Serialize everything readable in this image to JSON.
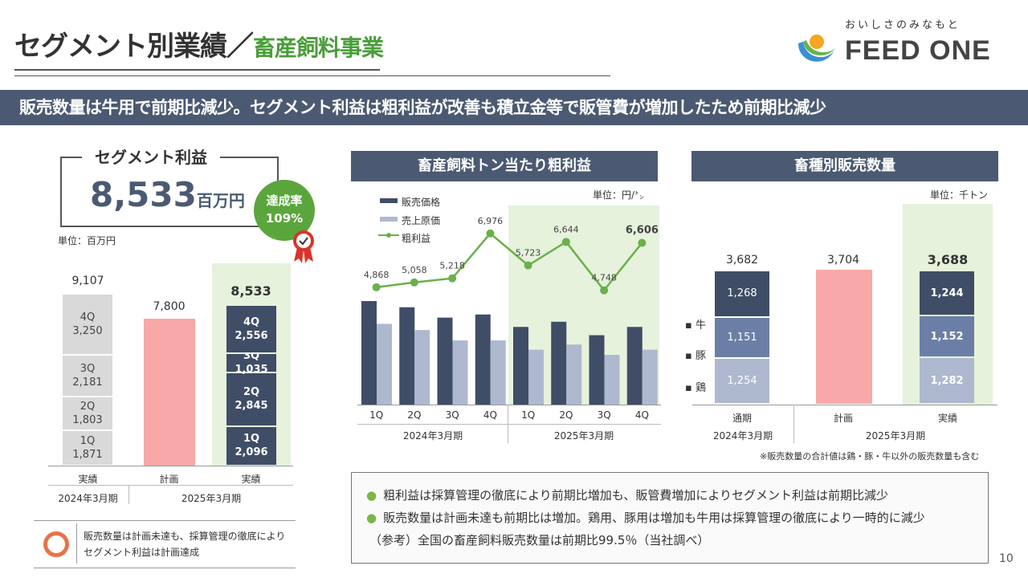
{
  "header": {
    "title": "セグメント別業績／",
    "subtitle": "畜産飼料事業",
    "logo_tagline": "おいしさのみなもと",
    "logo_name": "FEED ONE"
  },
  "banner": "販売数量は牛用で前期比減少。セグメント利益は粗利益が改善も積立金等で販管費が増加したため前期比減少",
  "profit": {
    "title": "セグメント利益",
    "value": "8,533",
    "unit": "百万円",
    "achv_label": "達成率",
    "achv_value": "109%",
    "unit_note": "単位：百万円"
  },
  "colors": {
    "navy": "#3f4d66",
    "gray": "#d9d9d9",
    "pink": "#f8a8a8",
    "green_bg": "#e6f2dc",
    "green": "#6ab04c",
    "lightblue": "#aeb9cf",
    "midblue": "#6b7fa6"
  },
  "chart_data": [
    {
      "type": "bar",
      "title": "セグメント利益",
      "categories": [
        "実績",
        "計画",
        "実績"
      ],
      "groups": [
        "2024年3月期",
        "2025年3月期"
      ],
      "totals": [
        "9,107",
        "7,800",
        "8,533"
      ],
      "stacks_2024": [
        {
          "q": "1Q",
          "v": "1,871",
          "n": 1871
        },
        {
          "q": "2Q",
          "v": "1,803",
          "n": 1803
        },
        {
          "q": "3Q",
          "v": "2,181",
          "n": 2181
        },
        {
          "q": "4Q",
          "v": "3,250",
          "n": 3250
        }
      ],
      "plan_2025": 7800,
      "stacks_2025": [
        {
          "q": "1Q",
          "v": "2,096",
          "n": 2096
        },
        {
          "q": "2Q",
          "v": "2,845",
          "n": 2845
        },
        {
          "q": "3Q",
          "v": "1,035",
          "n": 1035
        },
        {
          "q": "4Q",
          "v": "2,556",
          "n": 2556
        }
      ],
      "total_2024": 9107,
      "total_2025": 8533
    },
    {
      "type": "bar",
      "title": "畜産飼料トン当たり粗利益",
      "unit": "単位：円/㌧",
      "legend": [
        "販売価格",
        "売上原価",
        "粗利益"
      ],
      "categories": [
        "1Q",
        "2Q",
        "3Q",
        "4Q",
        "1Q",
        "2Q",
        "3Q",
        "4Q"
      ],
      "groups": [
        "2024年3月期",
        "2025年3月期"
      ],
      "price_rel": [
        100,
        94,
        84,
        87,
        75,
        80,
        67,
        75
      ],
      "cost_rel": [
        78,
        72,
        62,
        62,
        53,
        58,
        48,
        53
      ],
      "gross_profit": [
        4868,
        5058,
        5218,
        6976,
        5723,
        6644,
        4748,
        6606
      ],
      "gross_profit_labels": [
        "4,868",
        "5,058",
        "5,218",
        "6,976",
        "5,723",
        "6,644",
        "4,748",
        "6,606"
      ]
    },
    {
      "type": "bar",
      "title": "畜種別販売数量",
      "unit": "単位：千トン",
      "legend": [
        "牛",
        "豚",
        "鶏"
      ],
      "categories": [
        "通期",
        "計画",
        "実績"
      ],
      "groups": [
        "2024年3月期",
        "2025年3月期"
      ],
      "totals": [
        "3,682",
        "3,704",
        "3,688"
      ],
      "actual_2024": [
        {
          "k": "鶏",
          "v": "1,254",
          "n": 1254
        },
        {
          "k": "豚",
          "v": "1,151",
          "n": 1151
        },
        {
          "k": "牛",
          "v": "1,268",
          "n": 1268
        }
      ],
      "plan_2025": 3704,
      "actual_2025": [
        {
          "k": "鶏",
          "v": "1,282",
          "n": 1282
        },
        {
          "k": "豚",
          "v": "1,152",
          "n": 1152
        },
        {
          "k": "牛",
          "v": "1,244",
          "n": 1244
        }
      ],
      "footnote": "※販売数量の合計値は鶏・豚・牛以外の販売数量も含む"
    }
  ],
  "left_note": "販売数量は計画未達も、採算管理の徹底によりセグメント利益は計画達成",
  "notes": [
    "粗利益は採算管理の徹底により前期比増加も、販管費増加によりセグメント利益は前期比減少",
    "販売数量は計画未達も前期比は増加。鶏用、豚用は増加も牛用は採算管理の徹底により一時的に減少",
    "（参考）全国の畜産飼料販売数量は前期比99.5％（当社調べ）"
  ],
  "page_number": "10"
}
